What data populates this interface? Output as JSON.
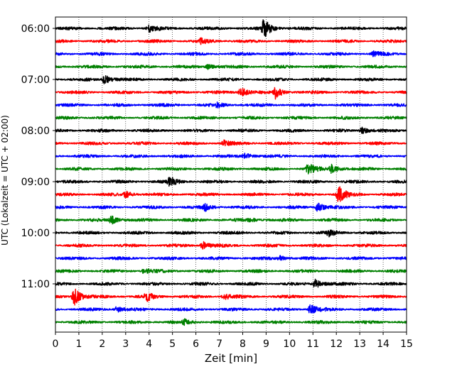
{
  "chart_data": {
    "type": "line",
    "title": "",
    "xlabel": "Zeit  [min]",
    "ylabel": "UTC (Lokalzeit = UTC + 02:00)",
    "xlim": [
      0,
      15
    ],
    "x_ticks": [
      "0",
      "1",
      "2",
      "3",
      "4",
      "5",
      "6",
      "7",
      "8",
      "9",
      "10",
      "11",
      "12",
      "13",
      "14",
      "15"
    ],
    "y_tick_labels": [
      "06:00",
      "07:00",
      "08:00",
      "09:00",
      "10:00",
      "11:00"
    ],
    "grid": "vertical dotted",
    "trace_interval_minutes": 15,
    "trace_colors": [
      "#000000",
      "#ff0000",
      "#0000ff",
      "#008000"
    ],
    "series": [
      {
        "start": "06:00",
        "color": "#000000",
        "events": [
          {
            "t": 8.9,
            "amp": 1.0
          },
          {
            "t": 4.0,
            "amp": 0.35
          }
        ]
      },
      {
        "start": "06:15",
        "color": "#ff0000",
        "events": [
          {
            "t": 6.2,
            "amp": 0.25
          }
        ]
      },
      {
        "start": "06:30",
        "color": "#0000ff",
        "events": [
          {
            "t": 13.6,
            "amp": 0.25
          }
        ]
      },
      {
        "start": "06:45",
        "color": "#008000",
        "events": [
          {
            "t": 6.5,
            "amp": 0.25
          }
        ]
      },
      {
        "start": "07:00",
        "color": "#000000",
        "events": [
          {
            "t": 2.1,
            "amp": 0.45
          }
        ]
      },
      {
        "start": "07:15",
        "color": "#ff0000",
        "events": [
          {
            "t": 7.9,
            "amp": 0.55
          },
          {
            "t": 9.4,
            "amp": 0.6
          }
        ]
      },
      {
        "start": "07:30",
        "color": "#0000ff",
        "events": [
          {
            "t": 6.9,
            "amp": 0.25
          }
        ]
      },
      {
        "start": "07:45",
        "color": "#008000",
        "events": []
      },
      {
        "start": "08:00",
        "color": "#000000",
        "events": [
          {
            "t": 13.1,
            "amp": 0.3
          }
        ]
      },
      {
        "start": "08:15",
        "color": "#ff0000",
        "events": [
          {
            "t": 7.2,
            "amp": 0.25
          }
        ]
      },
      {
        "start": "08:30",
        "color": "#0000ff",
        "events": [
          {
            "t": 8.1,
            "amp": 0.3
          }
        ]
      },
      {
        "start": "08:45",
        "color": "#008000",
        "events": [
          {
            "t": 10.8,
            "amp": 0.55
          },
          {
            "t": 11.8,
            "amp": 0.5
          }
        ]
      },
      {
        "start": "09:00",
        "color": "#000000",
        "events": [
          {
            "t": 4.9,
            "amp": 0.45
          }
        ]
      },
      {
        "start": "09:15",
        "color": "#ff0000",
        "events": [
          {
            "t": 12.1,
            "amp": 0.8
          },
          {
            "t": 3.0,
            "amp": 0.3
          }
        ]
      },
      {
        "start": "09:30",
        "color": "#0000ff",
        "events": [
          {
            "t": 11.2,
            "amp": 0.45
          },
          {
            "t": 6.4,
            "amp": 0.3
          }
        ]
      },
      {
        "start": "09:45",
        "color": "#008000",
        "events": [
          {
            "t": 2.4,
            "amp": 0.4
          },
          {
            "t": 8.3,
            "amp": 0.2
          }
        ]
      },
      {
        "start": "10:00",
        "color": "#000000",
        "events": [
          {
            "t": 11.7,
            "amp": 0.3
          }
        ]
      },
      {
        "start": "10:15",
        "color": "#ff0000",
        "events": [
          {
            "t": 6.3,
            "amp": 0.4
          }
        ]
      },
      {
        "start": "10:30",
        "color": "#0000ff",
        "events": [
          {
            "t": 9.6,
            "amp": 0.25
          }
        ]
      },
      {
        "start": "10:45",
        "color": "#008000",
        "events": [
          {
            "t": 3.8,
            "amp": 0.3
          }
        ]
      },
      {
        "start": "11:00",
        "color": "#000000",
        "events": [
          {
            "t": 11.1,
            "amp": 0.45
          }
        ]
      },
      {
        "start": "11:15",
        "color": "#ff0000",
        "events": [
          {
            "t": 0.8,
            "amp": 0.9
          },
          {
            "t": 3.9,
            "amp": 0.4
          },
          {
            "t": 7.2,
            "amp": 0.3
          }
        ]
      },
      {
        "start": "11:30",
        "color": "#0000ff",
        "events": [
          {
            "t": 10.9,
            "amp": 0.5
          },
          {
            "t": 2.6,
            "amp": 0.3
          }
        ]
      },
      {
        "start": "11:45",
        "color": "#008000",
        "events": [
          {
            "t": 5.5,
            "amp": 0.25
          }
        ]
      }
    ]
  }
}
